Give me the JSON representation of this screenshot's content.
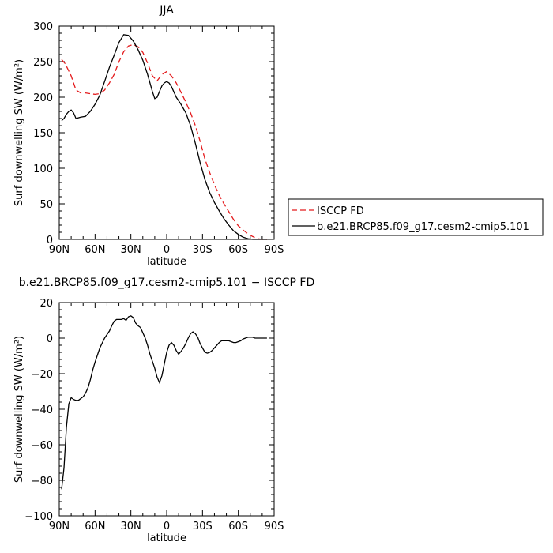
{
  "chart_data": [
    {
      "type": "line",
      "title": "JJA",
      "xlabel": "latitude",
      "ylabel": "Surf downwelling SW (W/m²)",
      "xlim": [
        90,
        -90
      ],
      "ylim": [
        0,
        300
      ],
      "xticks": [
        90,
        60,
        30,
        0,
        -30,
        -60,
        -90
      ],
      "xtick_labels": [
        "90N",
        "60N",
        "30N",
        "0",
        "30S",
        "60S",
        "90S"
      ],
      "yticks": [
        0,
        50,
        100,
        150,
        200,
        250,
        300
      ],
      "ytick_labels": [
        "0",
        "50",
        "100",
        "150",
        "200",
        "250",
        "300"
      ],
      "grid": false,
      "legend_placement": "right",
      "series": [
        {
          "name": "ISCCP FD",
          "color": "#e41a1c",
          "dash": "dashed",
          "x": [
            88,
            85,
            80,
            76,
            72,
            68,
            64,
            60,
            56,
            52,
            48,
            44,
            40,
            36,
            32,
            28,
            24,
            20,
            16,
            12,
            8,
            4,
            0,
            -4,
            -8,
            -12,
            -16,
            -20,
            -24,
            -28,
            -32,
            -36,
            -40,
            -44,
            -48,
            -52,
            -56,
            -60,
            -64,
            -68,
            -72,
            -76,
            -80,
            -84
          ],
          "y": [
            253,
            247,
            230,
            210,
            206,
            206,
            205,
            204,
            205,
            210,
            220,
            232,
            250,
            264,
            272,
            274,
            271,
            263,
            248,
            230,
            223,
            232,
            236,
            230,
            220,
            207,
            193,
            178,
            160,
            138,
            113,
            94,
            77,
            62,
            50,
            39,
            28,
            19,
            13,
            8,
            4,
            1,
            0,
            0
          ]
        },
        {
          "name": "b.e21.BRCP85.f09_g17.cesm2-cmip5.101",
          "color": "#000000",
          "dash": "solid",
          "x": [
            88,
            86,
            84,
            82,
            80,
            78,
            76,
            74,
            72,
            68,
            64,
            60,
            56,
            52,
            48,
            44,
            40,
            36,
            32,
            28,
            24,
            20,
            16,
            12,
            10,
            8,
            6,
            4,
            2,
            0,
            -2,
            -4,
            -8,
            -12,
            -16,
            -20,
            -24,
            -28,
            -32,
            -36,
            -40,
            -44,
            -48,
            -52,
            -56,
            -60,
            -64,
            -68,
            -72,
            -76,
            -80,
            -84
          ],
          "y": [
            167,
            170,
            176,
            180,
            182,
            178,
            170,
            171,
            172,
            173,
            180,
            190,
            203,
            222,
            242,
            259,
            277,
            288,
            287,
            279,
            267,
            252,
            232,
            208,
            198,
            200,
            208,
            216,
            220,
            222,
            220,
            215,
            200,
            190,
            178,
            160,
            135,
            108,
            84,
            66,
            52,
            40,
            29,
            20,
            12,
            7,
            3,
            1,
            0,
            0,
            0,
            0
          ]
        }
      ]
    },
    {
      "type": "line",
      "title": "b.e21.BRCP85.f09_g17.cesm2-cmip5.101 − ISCCP FD",
      "xlabel": "latitude",
      "ylabel": "Surf downwelling SW (W/m²)",
      "xlim": [
        90,
        -90
      ],
      "ylim": [
        -100,
        20
      ],
      "xticks": [
        90,
        60,
        30,
        0,
        -30,
        -60,
        -90
      ],
      "xtick_labels": [
        "90N",
        "60N",
        "30N",
        "0",
        "30S",
        "60S",
        "90S"
      ],
      "yticks": [
        -100,
        -80,
        -60,
        -40,
        -20,
        0,
        20
      ],
      "ytick_labels": [
        "−100",
        "−80",
        "−60",
        "−40",
        "−20",
        "0",
        "20"
      ],
      "grid": false,
      "series": [
        {
          "color": "#000000",
          "dash": "solid",
          "x": [
            88,
            86,
            84,
            82,
            80,
            78,
            76,
            74,
            72,
            70,
            68,
            66,
            64,
            62,
            60,
            56,
            52,
            48,
            46,
            44,
            42,
            40,
            38,
            36,
            34,
            32,
            30,
            28,
            26,
            24,
            22,
            20,
            18,
            16,
            14,
            12,
            10,
            8,
            6,
            4,
            2,
            0,
            -2,
            -4,
            -6,
            -8,
            -10,
            -12,
            -14,
            -16,
            -18,
            -20,
            -22,
            -24,
            -26,
            -28,
            -30,
            -32,
            -34,
            -36,
            -38,
            -40,
            -42,
            -44,
            -46,
            -48,
            -50,
            -52,
            -54,
            -56,
            -58,
            -60,
            -62,
            -64,
            -66,
            -68,
            -70,
            -72,
            -74,
            -76,
            -78,
            -80,
            -82,
            -84
          ],
          "y": [
            -85,
            -73,
            -50,
            -37,
            -33.5,
            -34.5,
            -35,
            -35,
            -34,
            -33,
            -31,
            -28,
            -23.5,
            -18,
            -13.5,
            -5.5,
            0,
            4,
            7,
            9.5,
            10.5,
            10.5,
            10.5,
            11,
            10,
            12,
            12.5,
            11.5,
            8.5,
            7,
            6,
            3,
            0,
            -4,
            -9,
            -13,
            -17,
            -22,
            -25,
            -21,
            -14.5,
            -8,
            -4,
            -2.5,
            -4,
            -7,
            -9,
            -7.5,
            -5.5,
            -3,
            0,
            2.5,
            3.5,
            2.5,
            0.5,
            -3,
            -5.5,
            -8,
            -8.5,
            -8,
            -7,
            -5.5,
            -4,
            -2.5,
            -1.5,
            -1.5,
            -1.5,
            -1.5,
            -2,
            -2.5,
            -2.5,
            -2,
            -1.5,
            -0.5,
            0,
            0.5,
            0.5,
            0.5,
            0,
            0,
            0,
            0,
            0,
            0
          ]
        }
      ]
    }
  ]
}
